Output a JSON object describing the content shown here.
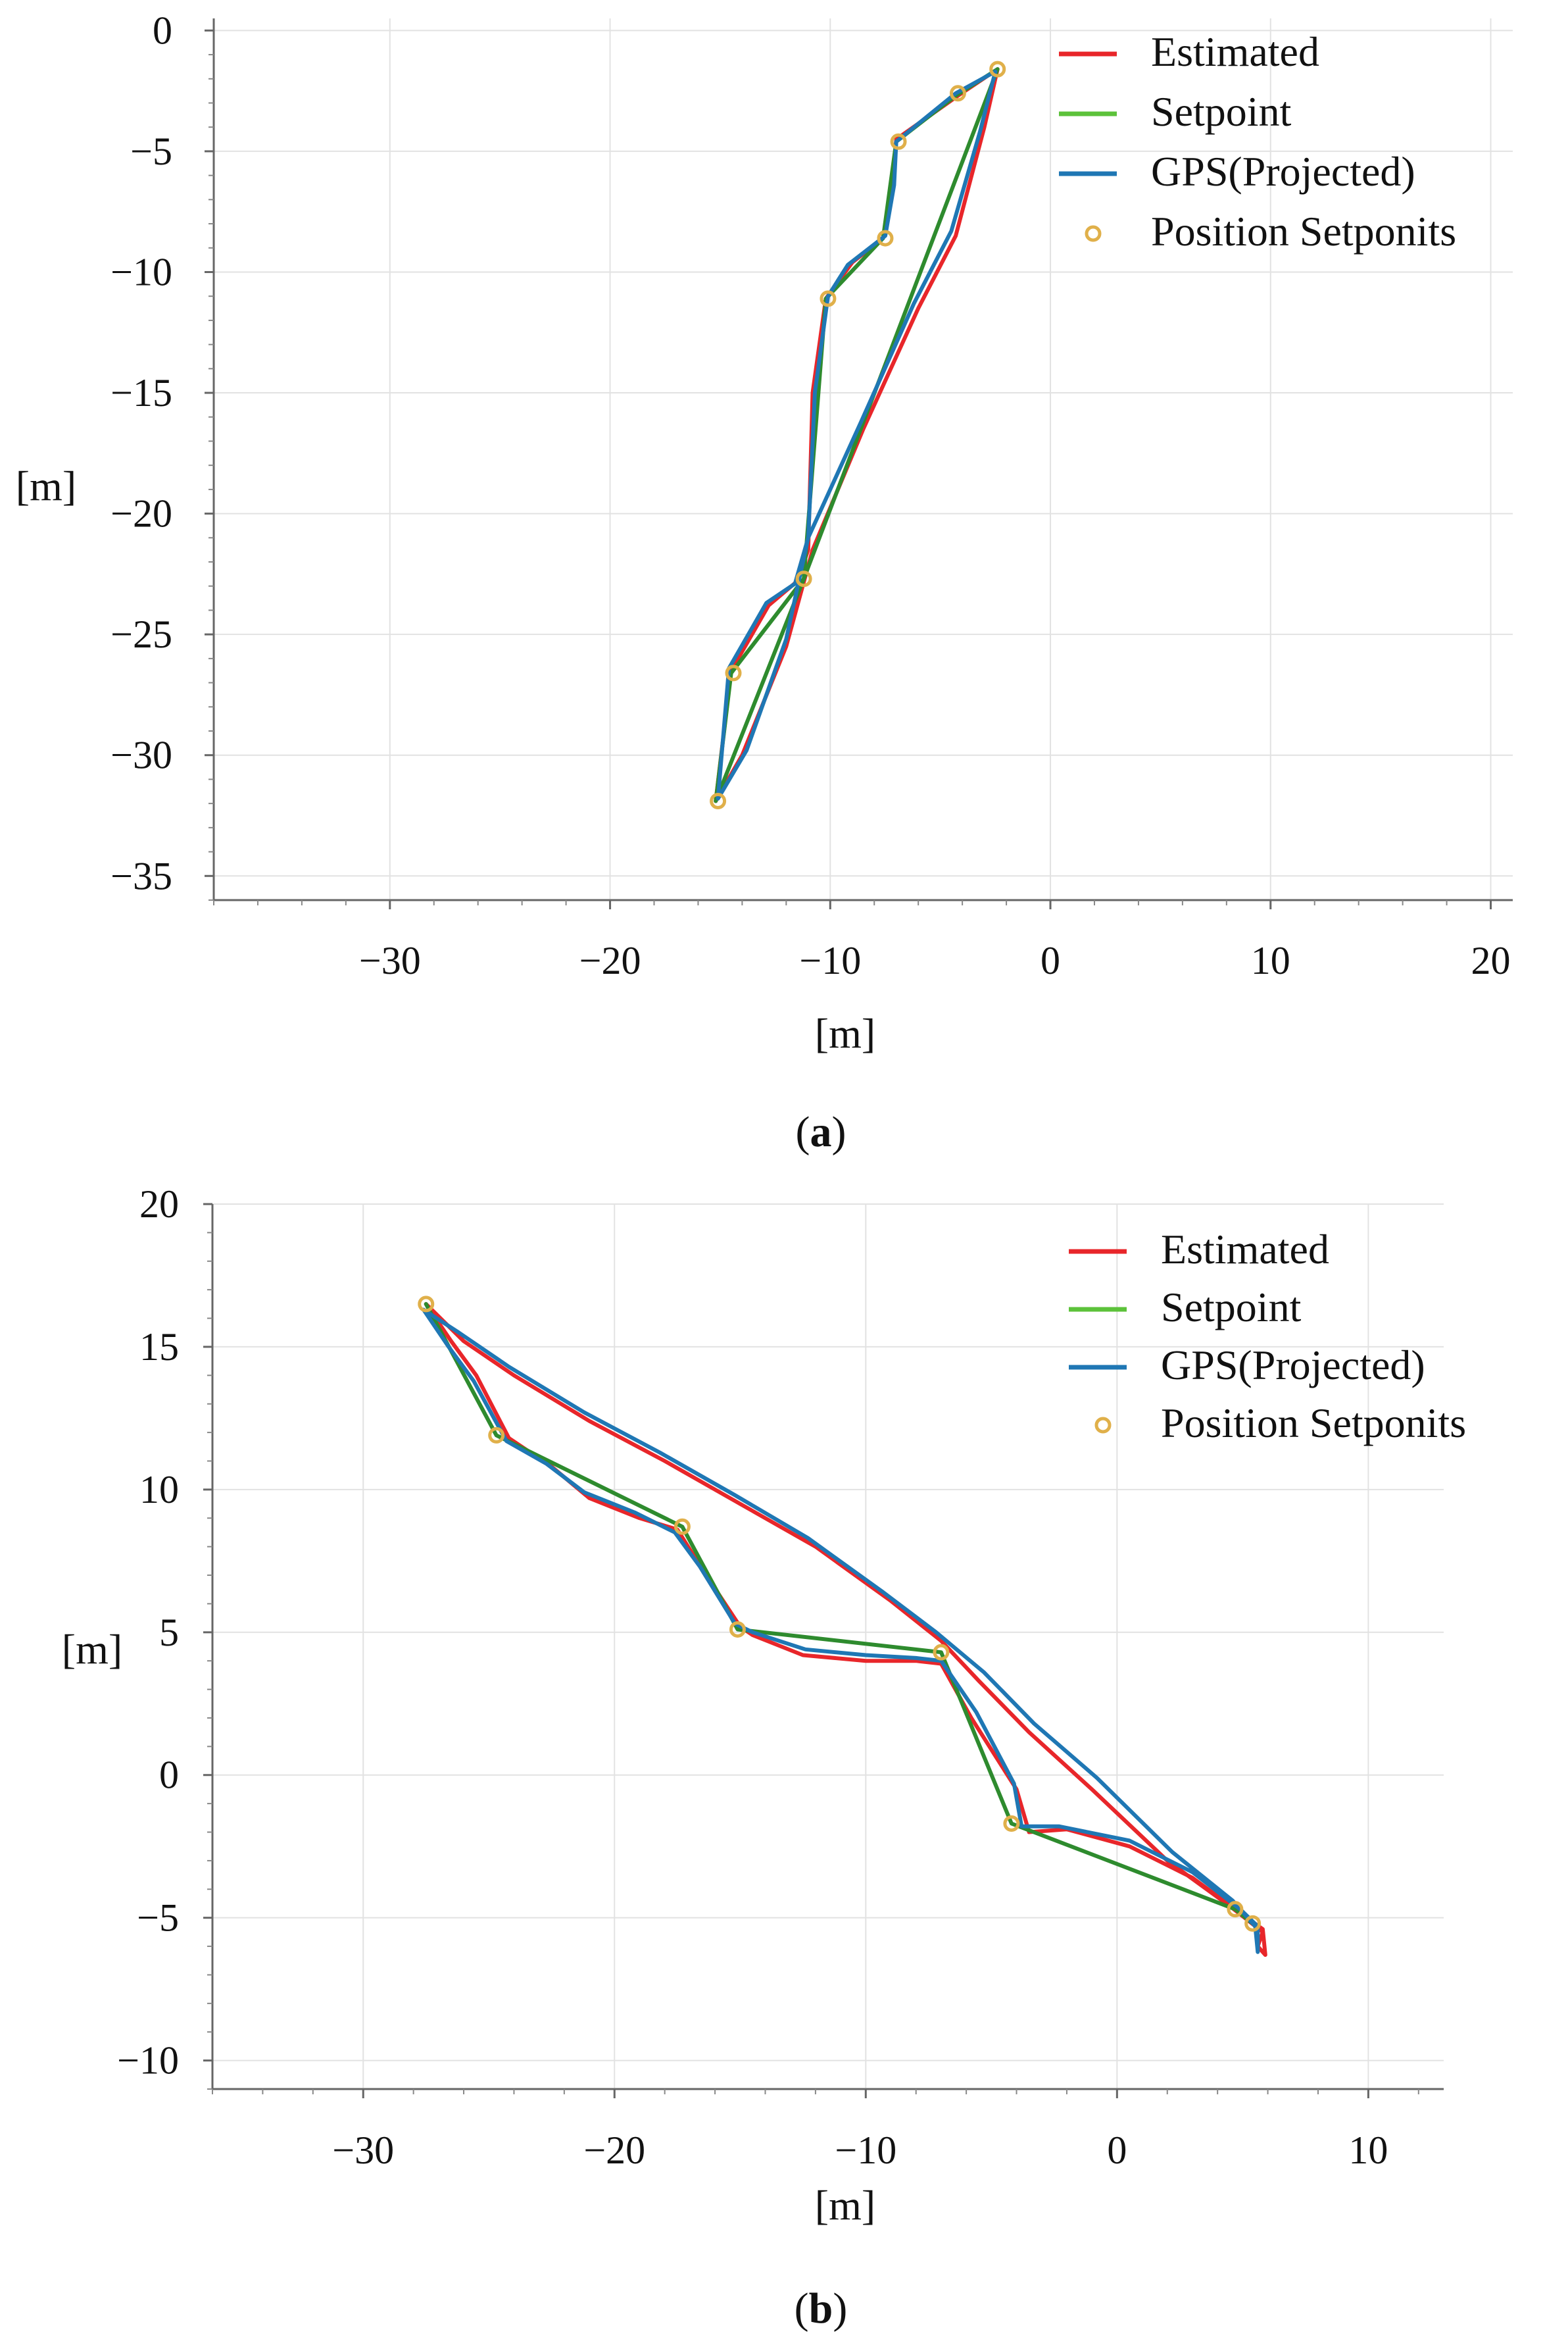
{
  "chart_data": [
    {
      "type": "line",
      "caption": {
        "open": "(",
        "letter": "a",
        "close": ")"
      },
      "xlabel": "[m]",
      "ylabel": "[m]",
      "xlim": [
        -38,
        21
      ],
      "ylim": [
        -36,
        0.5
      ],
      "xticks": [
        -30,
        -20,
        -10,
        0,
        10,
        20
      ],
      "xtick_labels": [
        "−30",
        "−20",
        "−10",
        "0",
        "10",
        "20"
      ],
      "yticks": [
        0,
        -5,
        -10,
        -15,
        -20,
        -25,
        -30,
        -35
      ],
      "ytick_labels": [
        "0",
        "−5",
        "−10",
        "−15",
        "−20",
        "−25",
        "−30",
        "−35"
      ],
      "grid": true,
      "legend_position": "top-right",
      "legend": [
        "Estimated",
        "Setpoint",
        "GPS(Projected)",
        "Position Setponits"
      ],
      "colors": {
        "Estimated": "#e8262a",
        "Setpoint": "#5cc23a",
        "GPS(Projected)": "#1f77b4",
        "Position Setponits": "#e0b04a"
      },
      "series": [
        {
          "name": "Estimated",
          "color": "#e8262a",
          "x": [
            -2.4,
            -4.2,
            -7.0,
            -7.2,
            -7.6,
            -9.0,
            -10.2,
            -10.8,
            -11.0,
            -11.5,
            -12.8,
            -14.5,
            -15.2,
            -14.0,
            -12.0,
            -10.8,
            -8.5,
            -6.0,
            -4.3,
            -3.0,
            -2.4
          ],
          "y": [
            -1.6,
            -2.7,
            -4.5,
            -6.5,
            -8.6,
            -9.6,
            -11.1,
            -15.0,
            -21.5,
            -22.8,
            -23.8,
            -26.5,
            -31.9,
            -30.0,
            -25.5,
            -21.5,
            -16.5,
            -11.5,
            -8.5,
            -4.0,
            -1.6
          ]
        },
        {
          "name": "Setpoint",
          "color": "#2e8b2e",
          "x": [
            -2.4,
            -4.3,
            -7.0,
            -7.6,
            -10.2,
            -11.2,
            -14.5,
            -15.2,
            -11.2,
            -2.4
          ],
          "y": [
            -1.6,
            -2.7,
            -4.6,
            -8.6,
            -11.1,
            -22.7,
            -26.6,
            -31.9,
            -22.7,
            -1.6
          ]
        },
        {
          "name": "GPS(Projected)",
          "color": "#1f77b4",
          "x": [
            -2.5,
            -4.3,
            -7.0,
            -7.1,
            -7.5,
            -9.2,
            -10.1,
            -10.7,
            -11.0,
            -11.6,
            -12.9,
            -14.6,
            -15.1,
            -13.8,
            -12.0,
            -11.0,
            -8.6,
            -6.2,
            -4.5,
            -3.2,
            -2.5
          ],
          "y": [
            -1.7,
            -2.6,
            -4.6,
            -6.4,
            -8.5,
            -9.7,
            -11.0,
            -15.0,
            -21.0,
            -22.9,
            -23.7,
            -26.4,
            -31.8,
            -29.8,
            -25.2,
            -21.0,
            -16.2,
            -11.3,
            -8.3,
            -4.2,
            -1.7
          ]
        },
        {
          "name": "Position Setponits",
          "type": "scatter",
          "color": "#e0b04a",
          "x": [
            -2.4,
            -4.2,
            -6.9,
            -7.5,
            -10.1,
            -11.2,
            -14.4,
            -15.1
          ],
          "y": [
            -1.6,
            -2.6,
            -4.6,
            -8.6,
            -11.1,
            -22.7,
            -26.6,
            -31.9
          ]
        }
      ]
    },
    {
      "type": "line",
      "caption": {
        "open": "(",
        "letter": "b",
        "close": ")"
      },
      "xlabel": "[m]",
      "ylabel": "[m]",
      "xlim": [
        -36,
        13
      ],
      "ylim": [
        -11,
        20
      ],
      "xticks": [
        -30,
        -20,
        -10,
        0,
        10
      ],
      "xtick_labels": [
        "−30",
        "−20",
        "−10",
        "0",
        "10"
      ],
      "yticks": [
        20,
        15,
        10,
        5,
        0,
        -5,
        -10
      ],
      "ytick_labels": [
        "20",
        "15",
        "10",
        "5",
        "0",
        "−5",
        "−10"
      ],
      "grid": true,
      "legend_position": "top-right",
      "legend": [
        "Estimated",
        "Setpoint",
        "GPS(Projected)",
        "Position Setponits"
      ],
      "colors": {
        "Estimated": "#e8262a",
        "Setpoint": "#5cc23a",
        "GPS(Projected)": "#1f77b4",
        "Position Setponits": "#e0b04a"
      },
      "series": [
        {
          "name": "Estimated",
          "color": "#e8262a",
          "x": [
            -27.5,
            -26.5,
            -25.5,
            -24.2,
            -22.5,
            -21.0,
            -19.0,
            -17.5,
            -16.5,
            -15.0,
            -14.5,
            -12.5,
            -10.0,
            -8.0,
            -7.0,
            -5.8,
            -4.0,
            -3.5,
            -2.0,
            0.5,
            3.0,
            5.0,
            5.8,
            5.9,
            5.6,
            5.8,
            4.5,
            2.0,
            -1.0,
            -3.5,
            -5.5,
            -7.0,
            -9.0,
            -12.0,
            -15.0,
            -18.0,
            -21.0,
            -24.0,
            -26.0,
            -27.5
          ],
          "y": [
            16.5,
            15.2,
            14.0,
            11.8,
            10.8,
            9.7,
            9.0,
            8.6,
            7.2,
            5.2,
            4.9,
            4.2,
            4.0,
            4.0,
            3.9,
            2.0,
            -0.5,
            -2.0,
            -1.9,
            -2.5,
            -3.6,
            -4.9,
            -5.4,
            -6.3,
            -6.0,
            -5.5,
            -4.6,
            -3.0,
            -0.5,
            1.5,
            3.3,
            4.7,
            6.1,
            8.0,
            9.5,
            11.0,
            12.4,
            14.0,
            15.2,
            16.5
          ]
        },
        {
          "name": "Setpoint",
          "color": "#2e8b2e",
          "x": [
            -27.5,
            -24.7,
            -17.3,
            -15.1,
            -7.0,
            -4.2,
            4.7,
            5.4,
            4.7,
            -4.2,
            -7.0,
            -15.1,
            -17.3,
            -24.7,
            -27.5
          ],
          "y": [
            16.5,
            11.9,
            8.7,
            5.1,
            4.3,
            -1.7,
            -4.7,
            -5.2,
            -4.7,
            -1.7,
            4.3,
            5.1,
            8.7,
            11.9,
            16.5
          ]
        },
        {
          "name": "GPS(Projected)",
          "color": "#1f77b4",
          "x": [
            -27.6,
            -26.6,
            -25.6,
            -24.3,
            -22.7,
            -21.2,
            -19.2,
            -17.6,
            -16.6,
            -15.2,
            -14.5,
            -12.4,
            -10.0,
            -8.0,
            -7.0,
            -5.6,
            -4.1,
            -3.8,
            -2.3,
            0.5,
            3.0,
            4.9,
            5.6,
            5.6,
            5.5,
            4.6,
            2.2,
            -0.8,
            -3.3,
            -5.3,
            -7.2,
            -9.3,
            -12.3,
            -15.2,
            -18.2,
            -21.2,
            -24.2,
            -26.2,
            -27.6
          ],
          "y": [
            16.3,
            15.0,
            13.8,
            11.7,
            10.9,
            9.9,
            9.2,
            8.5,
            7.3,
            5.3,
            5.0,
            4.4,
            4.2,
            4.1,
            4.0,
            2.2,
            -0.3,
            -1.8,
            -1.8,
            -2.3,
            -3.4,
            -4.7,
            -5.3,
            -6.2,
            -5.3,
            -4.4,
            -2.7,
            -0.1,
            1.8,
            3.6,
            5.0,
            6.4,
            8.3,
            9.8,
            11.3,
            12.7,
            14.3,
            15.5,
            16.3
          ]
        },
        {
          "name": "Position Setponits",
          "type": "scatter",
          "color": "#e0b04a",
          "x": [
            -27.5,
            -24.7,
            -17.3,
            -15.1,
            -7.0,
            -4.2,
            4.7,
            5.4
          ],
          "y": [
            16.5,
            11.9,
            8.7,
            5.1,
            4.3,
            -1.7,
            -4.7,
            -5.2
          ]
        }
      ]
    }
  ]
}
